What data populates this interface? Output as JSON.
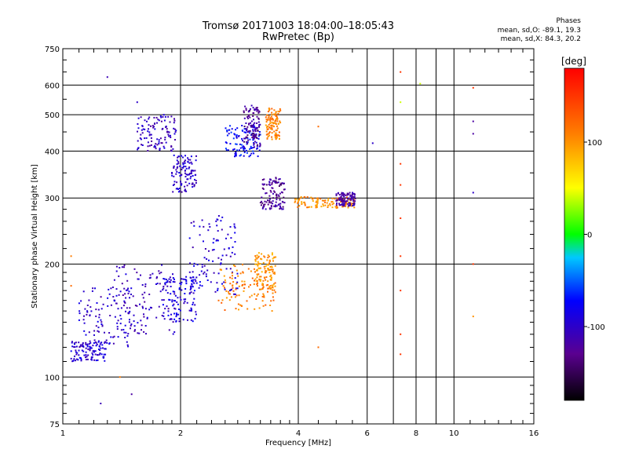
{
  "title_line1": "Tromsø 20171003 18:04:00–18:05:43",
  "title_line2": "RwPretec (Bp)",
  "phases": {
    "heading": "Phases",
    "line_o": "mean, sd,O: -89.1, 19.3",
    "line_x": "mean, sd,X: 84.3, 20.2"
  },
  "colorbar": {
    "label": "[deg]",
    "ticks": [
      "100",
      "0",
      "-100"
    ],
    "tick_values": [
      100,
      0,
      -100
    ],
    "range": [
      -180,
      180
    ]
  },
  "chart_data": {
    "type": "scatter",
    "xlabel": "Frequency [MHz]",
    "ylabel": "Stationary phase Virtual Height [km]",
    "xscale": "log",
    "yscale": "log",
    "xlim": [
      1,
      16
    ],
    "ylim": [
      75,
      750
    ],
    "x_ticks": [
      1,
      2,
      4,
      6,
      8,
      10,
      16
    ],
    "x_tick_labels": [
      "1",
      "2",
      "4",
      "6",
      "8",
      "10",
      "16"
    ],
    "y_ticks": [
      75,
      100,
      200,
      300,
      400,
      500,
      600,
      750
    ],
    "y_tick_labels": [
      "75",
      "100",
      "200",
      "300",
      "400",
      "500",
      "600",
      "750"
    ],
    "grid": true,
    "clusters": [
      {
        "f_range": [
          1.05,
          1.3
        ],
        "h_range": [
          110,
          125
        ],
        "phase": -95
      },
      {
        "f_range": [
          1.1,
          1.5
        ],
        "h_range": [
          120,
          175
        ],
        "phase": -100
      },
      {
        "f_range": [
          1.35,
          1.95
        ],
        "h_range": [
          130,
          200
        ],
        "phase": -105
      },
      {
        "f_range": [
          1.8,
          2.2
        ],
        "h_range": [
          140,
          185
        ],
        "phase": -90
      },
      {
        "f_range": [
          1.55,
          1.95
        ],
        "h_range": [
          400,
          500
        ],
        "phase": -105
      },
      {
        "f_range": [
          1.9,
          2.2
        ],
        "h_range": [
          310,
          390
        ],
        "phase": -100
      },
      {
        "f_range": [
          2.1,
          2.8
        ],
        "h_range": [
          165,
          270
        ],
        "phase": -95
      },
      {
        "f_range": [
          2.5,
          3.5
        ],
        "h_range": [
          150,
          200
        ],
        "phase": 110
      },
      {
        "f_range": [
          3.1,
          3.5
        ],
        "h_range": [
          170,
          215
        ],
        "phase": 100
      },
      {
        "f_range": [
          2.6,
          3.2
        ],
        "h_range": [
          385,
          470
        ],
        "phase": -75
      },
      {
        "f_range": [
          2.9,
          3.2
        ],
        "h_range": [
          410,
          530
        ],
        "phase": -125
      },
      {
        "f_range": [
          3.3,
          3.6
        ],
        "h_range": [
          430,
          520
        ],
        "phase": 110
      },
      {
        "f_range": [
          3.2,
          3.7
        ],
        "h_range": [
          280,
          340
        ],
        "phase": -125
      },
      {
        "f_range": [
          3.9,
          5.6
        ],
        "h_range": [
          282,
          302
        ],
        "phase": 105
      },
      {
        "f_range": [
          5.0,
          5.6
        ],
        "h_range": [
          285,
          310
        ],
        "phase": -120
      }
    ],
    "sparse_points": [
      {
        "f": 7.3,
        "h": 650,
        "phase": 150
      },
      {
        "f": 7.3,
        "h": 370,
        "phase": 150
      },
      {
        "f": 7.3,
        "h": 325,
        "phase": 150
      },
      {
        "f": 7.3,
        "h": 265,
        "phase": 150
      },
      {
        "f": 7.3,
        "h": 210,
        "phase": 150
      },
      {
        "f": 7.3,
        "h": 170,
        "phase": 150
      },
      {
        "f": 7.3,
        "h": 130,
        "phase": 150
      },
      {
        "f": 7.3,
        "h": 115,
        "phase": 150
      },
      {
        "f": 7.3,
        "h": 540,
        "phase": 40
      },
      {
        "f": 8.2,
        "h": 605,
        "phase": 40
      },
      {
        "f": 11.2,
        "h": 590,
        "phase": 150
      },
      {
        "f": 11.2,
        "h": 480,
        "phase": -120
      },
      {
        "f": 11.2,
        "h": 445,
        "phase": -120
      },
      {
        "f": 11.2,
        "h": 310,
        "phase": -100
      },
      {
        "f": 11.2,
        "h": 200,
        "phase": 150
      },
      {
        "f": 11.2,
        "h": 145,
        "phase": 100
      },
      {
        "f": 6.2,
        "h": 420,
        "phase": -100
      },
      {
        "f": 4.5,
        "h": 465,
        "phase": 120
      },
      {
        "f": 4.5,
        "h": 120,
        "phase": 120
      },
      {
        "f": 1.5,
        "h": 90,
        "phase": -120
      },
      {
        "f": 1.4,
        "h": 100,
        "phase": 110
      },
      {
        "f": 1.25,
        "h": 85,
        "phase": -110
      },
      {
        "f": 1.3,
        "h": 630,
        "phase": -110
      },
      {
        "f": 1.55,
        "h": 540,
        "phase": -100
      },
      {
        "f": 1.05,
        "h": 210,
        "phase": 110
      },
      {
        "f": 1.05,
        "h": 175,
        "phase": 120
      }
    ]
  }
}
